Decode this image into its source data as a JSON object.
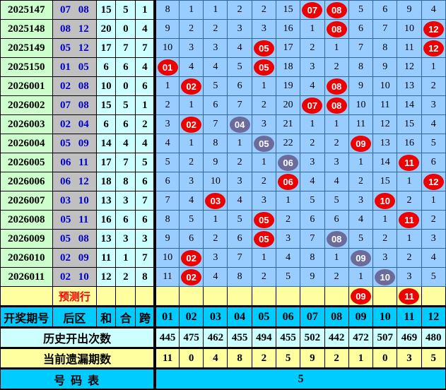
{
  "colors": {
    "red_ball": "#ee0000",
    "gray_ball": "#6c6c9c",
    "grid_bg": "#99ccff",
    "grid_line": "#336699",
    "header_bg": "#00ccff",
    "yellow_bg": "#ffffa0",
    "green_bg": "#ccffcc",
    "zone_col_bg": "#c0c0c0",
    "pale_cyan_bg": "#ccffff",
    "zone_text": "#0000cc",
    "predict_text": "#ff0000"
  },
  "chart_data": {
    "type": "table",
    "left_headers": {
      "period": "开奖期号",
      "zone": "后区",
      "sum": "和",
      "combo": "合",
      "span": "跨"
    },
    "number_columns": [
      "01",
      "02",
      "03",
      "04",
      "05",
      "06",
      "07",
      "08",
      "09",
      "10",
      "11",
      "12"
    ],
    "rows": [
      {
        "period": "2025147",
        "zone": "07 08",
        "sum": "15",
        "combo": "5",
        "span": "1",
        "cells": [
          "8",
          "1",
          "1",
          "2",
          "2",
          "15",
          "R:07",
          "R:08",
          "5",
          "6",
          "9",
          "4"
        ]
      },
      {
        "period": "2025148",
        "zone": "08 12",
        "sum": "20",
        "combo": "0",
        "span": "4",
        "cells": [
          "9",
          "2",
          "2",
          "3",
          "3",
          "16",
          "1",
          "R:08",
          "6",
          "7",
          "10",
          "R:12"
        ]
      },
      {
        "period": "2025149",
        "zone": "05 12",
        "sum": "17",
        "combo": "7",
        "span": "7",
        "cells": [
          "10",
          "3",
          "3",
          "4",
          "R:05",
          "17",
          "2",
          "1",
          "7",
          "8",
          "11",
          "R:12"
        ]
      },
      {
        "period": "2025150",
        "zone": "01 05",
        "sum": "6",
        "combo": "6",
        "span": "4",
        "cells": [
          "R:01",
          "4",
          "4",
          "5",
          "R:05",
          "18",
          "3",
          "2",
          "8",
          "9",
          "12",
          "1"
        ]
      },
      {
        "period": "2026001",
        "zone": "02 08",
        "sum": "10",
        "combo": "0",
        "span": "6",
        "cells": [
          "1",
          "R:02",
          "5",
          "6",
          "1",
          "19",
          "4",
          "R:08",
          "9",
          "10",
          "13",
          "2"
        ]
      },
      {
        "period": "2026002",
        "zone": "07 08",
        "sum": "15",
        "combo": "5",
        "span": "1",
        "cells": [
          "2",
          "1",
          "6",
          "7",
          "2",
          "20",
          "R:07",
          "R:08",
          "10",
          "11",
          "14",
          "3"
        ]
      },
      {
        "period": "2026003",
        "zone": "02 04",
        "sum": "6",
        "combo": "6",
        "span": "2",
        "cells": [
          "3",
          "R:02",
          "7",
          "G:04",
          "3",
          "21",
          "1",
          "1",
          "11",
          "12",
          "15",
          "4"
        ]
      },
      {
        "period": "2026004",
        "zone": "05 09",
        "sum": "14",
        "combo": "4",
        "span": "4",
        "cells": [
          "4",
          "1",
          "8",
          "1",
          "G:05",
          "22",
          "2",
          "2",
          "R:09",
          "13",
          "16",
          "5"
        ]
      },
      {
        "period": "2026005",
        "zone": "06 11",
        "sum": "17",
        "combo": "7",
        "span": "5",
        "cells": [
          "5",
          "2",
          "9",
          "2",
          "1",
          "G:06",
          "3",
          "3",
          "1",
          "14",
          "R:11",
          "6"
        ]
      },
      {
        "period": "2026006",
        "zone": "06 12",
        "sum": "18",
        "combo": "8",
        "span": "6",
        "cells": [
          "6",
          "3",
          "10",
          "3",
          "2",
          "R:06",
          "4",
          "4",
          "2",
          "15",
          "1",
          "R:12"
        ]
      },
      {
        "period": "2026007",
        "zone": "03 10",
        "sum": "13",
        "combo": "3",
        "span": "7",
        "cells": [
          "7",
          "4",
          "R:03",
          "4",
          "3",
          "1",
          "5",
          "5",
          "3",
          "R:10",
          "2",
          "1"
        ]
      },
      {
        "period": "2026008",
        "zone": "05 11",
        "sum": "16",
        "combo": "6",
        "span": "6",
        "cells": [
          "8",
          "5",
          "1",
          "5",
          "R:05",
          "2",
          "6",
          "6",
          "4",
          "1",
          "R:11",
          "2"
        ]
      },
      {
        "period": "2026009",
        "zone": "05 08",
        "sum": "13",
        "combo": "3",
        "span": "3",
        "cells": [
          "9",
          "6",
          "2",
          "6",
          "R:05",
          "3",
          "7",
          "G:08",
          "5",
          "2",
          "1",
          "3"
        ]
      },
      {
        "period": "2026010",
        "zone": "02 09",
        "sum": "11",
        "combo": "1",
        "span": "7",
        "cells": [
          "10",
          "R:02",
          "3",
          "7",
          "1",
          "4",
          "8",
          "1",
          "G:09",
          "3",
          "2",
          "4"
        ]
      },
      {
        "period": "2026011",
        "zone": "02 10",
        "sum": "12",
        "combo": "2",
        "span": "8",
        "cells": [
          "11",
          "R:02",
          "4",
          "8",
          "2",
          "5",
          "9",
          "2",
          "1",
          "G:10",
          "3",
          "5"
        ]
      }
    ],
    "predict_row": {
      "label": "预测行",
      "cells": [
        "",
        "",
        "",
        "",
        "",
        "",
        "",
        "",
        "R:09",
        "",
        "R:11",
        ""
      ]
    },
    "history_row": {
      "label": "历史开出次数",
      "values": [
        "445",
        "475",
        "462",
        "455",
        "494",
        "455",
        "502",
        "442",
        "472",
        "507",
        "469",
        "480"
      ]
    },
    "missing_row": {
      "label": "当前遗漏期数",
      "values": [
        "11",
        "0",
        "4",
        "8",
        "2",
        "5",
        "9",
        "2",
        "1",
        "0",
        "3",
        "5"
      ]
    },
    "footer_row": {
      "label": "号  码  表",
      "value": "5"
    }
  }
}
